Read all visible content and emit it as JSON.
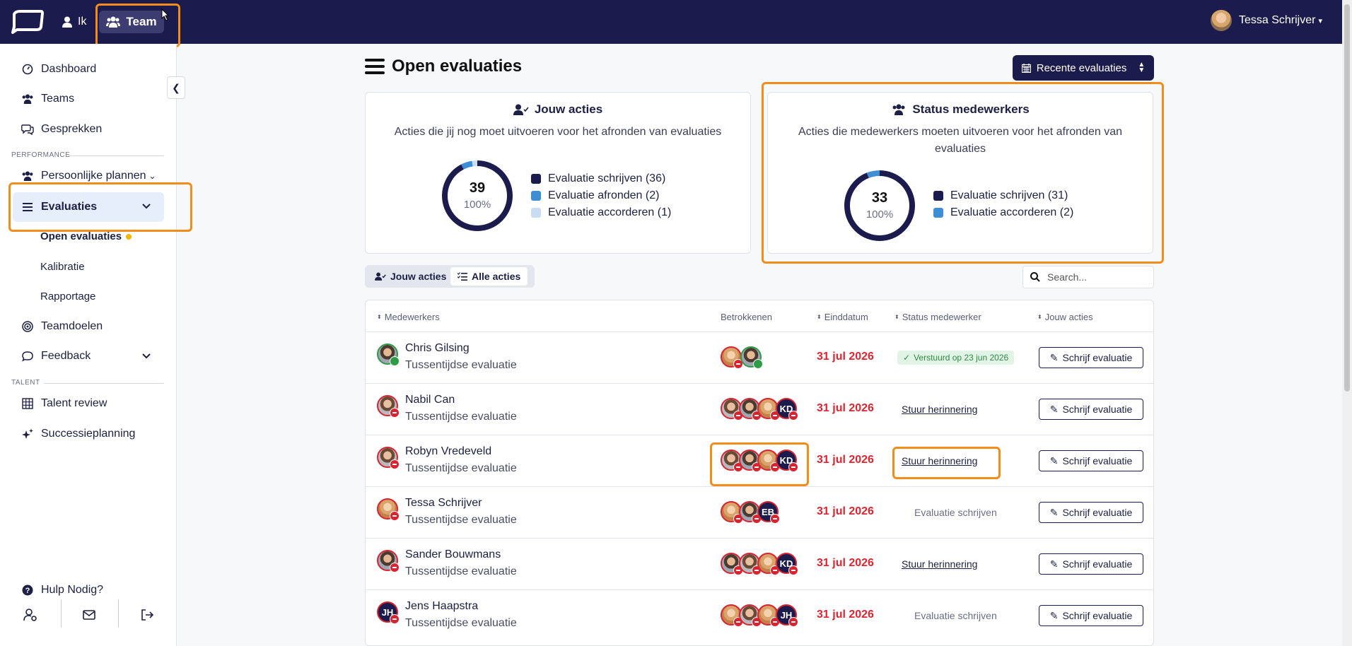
{
  "topbar": {
    "nav_ik": "Ik",
    "nav_team": "Team",
    "user_name": "Tessa Schrijver"
  },
  "sidebar": {
    "items": {
      "dashboard": "Dashboard",
      "teams": "Teams",
      "gesprekken": "Gesprekken",
      "persoonlijke_plannen": "Persoonlijke plannen",
      "evaluaties": "Evaluaties",
      "teamdoelen": "Teamdoelen",
      "feedback": "Feedback",
      "talent_review": "Talent review",
      "successieplanning": "Successieplanning",
      "hulp": "Hulp Nodig?"
    },
    "sections": {
      "performance": "PERFORMANCE",
      "talent": "TALENT"
    },
    "sub": {
      "open_evaluaties": "Open evaluaties",
      "kalibratie": "Kalibratie",
      "rapportage": "Rapportage"
    }
  },
  "main": {
    "title": "Open evaluaties",
    "recent_button": "Recente evaluaties",
    "card_jouw": {
      "title": "Jouw acties",
      "subtitle": "Acties die jij nog moet uitvoeren voor het afronden van evaluaties",
      "total": "39",
      "percent": "100%",
      "legend": [
        "Evaluatie schrijven (36)",
        "Evaluatie afronden (2)",
        "Evaluatie accorderen (1)"
      ],
      "values": [
        36,
        2,
        1
      ],
      "colors": [
        "#1c1b4d",
        "#3e8ed6",
        "#c9ddf2"
      ]
    },
    "card_status": {
      "title": "Status medewerkers",
      "subtitle": "Acties die medewerkers moeten uitvoeren voor het afronden van evaluaties",
      "total": "33",
      "percent": "100%",
      "legend": [
        "Evaluatie schrijven (31)",
        "Evaluatie accorderen (2)"
      ],
      "values": [
        31,
        2
      ],
      "colors": [
        "#1c1b4d",
        "#3e8ed6"
      ]
    },
    "tabs": {
      "jouw": "Jouw acties",
      "alle": "Alle acties"
    },
    "search_placeholder": "Search...",
    "table": {
      "headers": {
        "medewerkers": "Medewerkers",
        "betrokkenen": "Betrokkenen",
        "einddatum": "Einddatum",
        "status": "Status medewerker",
        "acties": "Jouw acties"
      },
      "action_label": "Schrijf evaluatie",
      "rows": [
        {
          "name": "Chris Gilsing",
          "type": "Tussentijdse evaluatie",
          "date": "31 jul 2026",
          "status": "Verstuurd op 23 jun 2026"
        },
        {
          "name": "Nabil Can",
          "type": "Tussentijdse evaluatie",
          "date": "31 jul 2026",
          "status": "Stuur herinnering"
        },
        {
          "name": "Robyn Vredeveld",
          "type": "Tussentijdse evaluatie",
          "date": "31 jul 2026",
          "status": "Stuur herinnering"
        },
        {
          "name": "Tessa Schrijver",
          "type": "Tussentijdse evaluatie",
          "date": "31 jul 2026",
          "status": "Evaluatie schrijven"
        },
        {
          "name": "Sander Bouwmans",
          "type": "Tussentijdse evaluatie",
          "date": "31 jul 2026",
          "status": "Stuur herinnering"
        },
        {
          "name": "Jens Haapstra",
          "type": "Tussentijdse evaluatie",
          "date": "31 jul 2026",
          "status": "Evaluatie schrijven"
        }
      ],
      "initials": {
        "kd": "KD",
        "eb": "EB",
        "jh": "JH"
      }
    }
  }
}
